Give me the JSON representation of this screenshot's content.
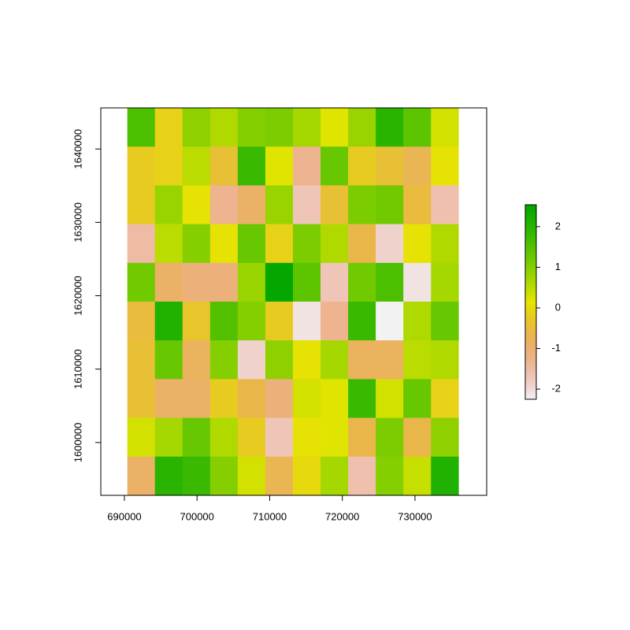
{
  "chart_data": {
    "type": "heatmap",
    "colormap": "terrain",
    "x": [
      692300,
      696100,
      699900,
      703700,
      707500,
      711300,
      715100,
      718900,
      722700,
      726500,
      730300,
      734100
    ],
    "y": [
      1642960,
      1637680,
      1632400,
      1627120,
      1621840,
      1616560,
      1611280,
      1606000,
      1600720,
      1595440
    ],
    "z": [
      [
        1.6,
        -0.1,
        0.9,
        0.6,
        1.0,
        1.1,
        0.7,
        0.2,
        0.8,
        2.0,
        1.4,
        0.3
      ],
      [
        -0.2,
        -0.1,
        0.5,
        -0.4,
        1.8,
        0.2,
        -1.3,
        1.3,
        -0.2,
        -0.4,
        -0.7,
        0.1
      ],
      [
        -0.2,
        0.8,
        0.1,
        -1.3,
        -0.9,
        0.8,
        -1.7,
        -0.4,
        1.1,
        1.2,
        -0.5,
        -1.6
      ],
      [
        -1.5,
        0.5,
        1.0,
        0.1,
        1.3,
        -0.1,
        1.1,
        0.6,
        -0.6,
        -1.9,
        0.1,
        0.6
      ],
      [
        1.2,
        -0.9,
        -1.1,
        -1.1,
        0.8,
        2.5,
        1.4,
        -1.7,
        1.2,
        1.6,
        -2.1,
        0.7
      ],
      [
        -0.5,
        2.1,
        -0.3,
        1.5,
        1.0,
        -0.2,
        -2.1,
        -1.3,
        1.8,
        -2.25,
        0.6,
        1.3
      ],
      [
        -0.4,
        1.3,
        -0.8,
        1.0,
        -1.9,
        0.9,
        0.1,
        0.7,
        -0.8,
        -0.8,
        0.5,
        0.6
      ],
      [
        -0.4,
        -0.9,
        -0.9,
        -0.2,
        -0.6,
        -1.1,
        0.3,
        0.2,
        1.8,
        0.3,
        1.3,
        -0.1
      ],
      [
        0.3,
        0.7,
        1.3,
        0.6,
        -0.2,
        -1.7,
        0.1,
        0.2,
        -0.6,
        1.1,
        -0.6,
        0.9
      ],
      [
        -0.9,
        2.0,
        1.8,
        1.0,
        0.3,
        -0.7,
        0.0,
        0.7,
        -1.6,
        1.0,
        0.4,
        2.1
      ]
    ],
    "xlim": [
      686750,
      739870
    ],
    "ylim": [
      1592800,
      1645600
    ],
    "xticks": [
      690000,
      700000,
      710000,
      720000,
      730000
    ],
    "yticks": [
      1600000,
      1610000,
      1620000,
      1630000,
      1640000
    ],
    "zlim": [
      -2.25,
      2.54
    ],
    "zticks": [
      -2,
      -1,
      0,
      1,
      2
    ]
  }
}
